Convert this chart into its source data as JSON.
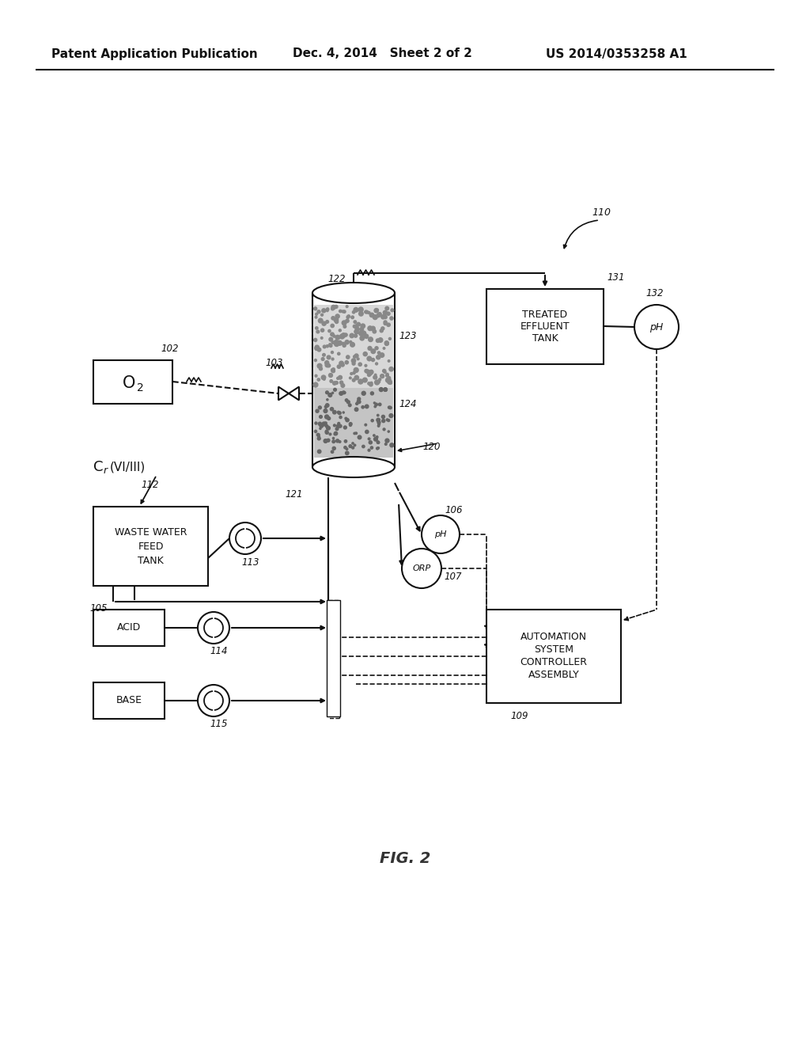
{
  "bg_color": "#ffffff",
  "header_left": "Patent Application Publication",
  "header_mid": "Dec. 4, 2014   Sheet 2 of 2",
  "header_right": "US 2014/0353258 A1",
  "fig_label": "FIG. 2",
  "label_o2": "O",
  "label_cr": "C",
  "label_cr_sub": "r",
  "label_cr_rest": "(VI/III)",
  "label_wwft1": "WASTE WATER",
  "label_wwft2": "FEED",
  "label_wwft3": "TANK",
  "label_acid": "ACID",
  "label_base": "BASE",
  "label_tet1": "TREATED",
  "label_tet2": "EFFLUENT",
  "label_tet3": "TANK",
  "label_asca1": "AUTOMATION",
  "label_asca2": "SYSTEM",
  "label_asca3": "CONTROLLER",
  "label_asca4": "ASSEMBLY",
  "label_ph": "pH",
  "label_orp": "ORP",
  "r110": "110",
  "r102": "102",
  "r103": "103",
  "r105": "105",
  "r106": "106",
  "r107": "107",
  "r109": "109",
  "r112": "112",
  "r113": "113",
  "r114": "114",
  "r115": "115",
  "r120": "120",
  "r121": "121",
  "r122": "122",
  "r123": "123",
  "r124": "124",
  "r131": "131",
  "r132": "132"
}
